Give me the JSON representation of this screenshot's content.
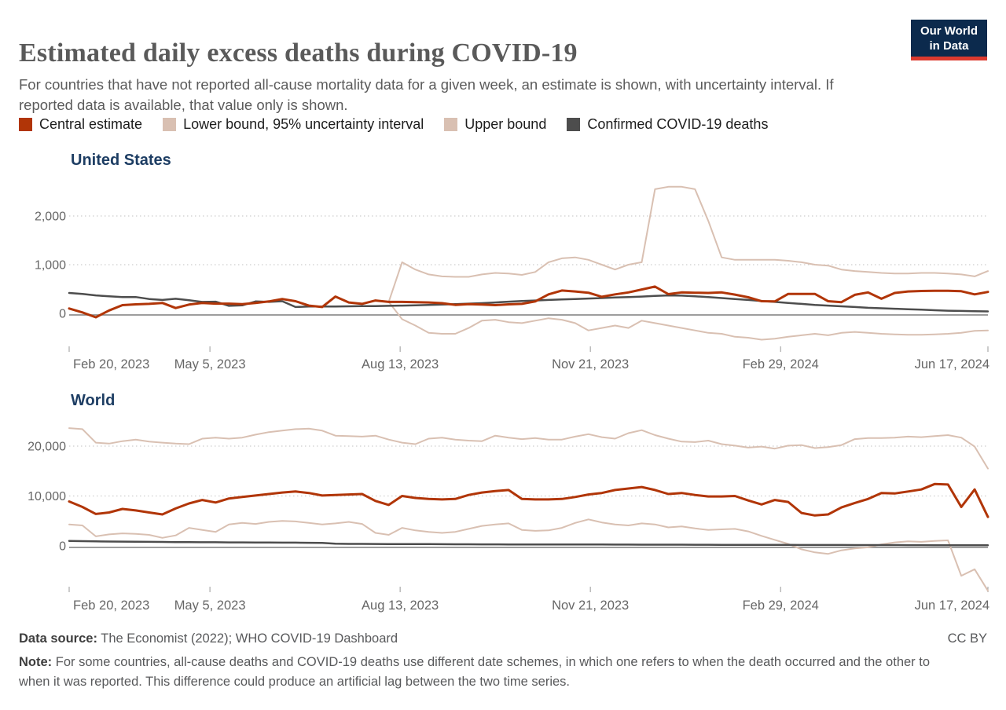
{
  "header": {
    "title": "Estimated daily excess deaths during COVID-19",
    "subtitle": "For countries that have not reported all-cause mortality data for a given week, an estimate is shown, with uncertainty interval. If reported data is available, that value only is shown."
  },
  "logo": {
    "line1": "Our World",
    "line2": "in Data",
    "bg_color": "#0c2a4d",
    "bar_color": "#dc3a2f"
  },
  "legend": {
    "items": [
      {
        "label": "Central estimate",
        "color": "#b13507"
      },
      {
        "label": "Lower bound, 95% uncertainty interval",
        "color": "#d9c0b2"
      },
      {
        "label": "Upper bound",
        "color": "#d9c0b2"
      },
      {
        "label": "Confirmed COVID-19 deaths",
        "color": "#4d4d4d"
      }
    ]
  },
  "footer": {
    "data_source_label": "Data source:",
    "data_source_text": "The Economist (2022); WHO COVID-19 Dashboard",
    "license": "CC BY",
    "note_label": "Note:",
    "note_text": "For some countries, all-cause deaths and COVID-19 deaths use different date schemes, in which one refers to when the death occurred and the other to when it was reported. This difference could produce an artificial lag between the two time series."
  },
  "chart_data": [
    {
      "type": "line",
      "title": "United States",
      "week_step_days": 7,
      "x_axis": {
        "total_days": 483,
        "tick_days": [
          0,
          74,
          174,
          274,
          374,
          483
        ],
        "tick_labels": [
          "Feb 20, 2023",
          "May 5, 2023",
          "Aug 13, 2023",
          "Nov 21, 2023",
          "Feb 29, 2024",
          "Jun 17, 2024"
        ]
      },
      "y_axis": {
        "ticks": [
          0,
          1000,
          2000
        ],
        "tick_labels": [
          "0",
          "1,000",
          "2,000"
        ],
        "ylim": [
          -650,
          2800
        ],
        "grid": true
      },
      "series": [
        {
          "name": "Upper bound",
          "color": "#d9c0b2",
          "width": 2,
          "values": [
            null,
            null,
            null,
            null,
            null,
            null,
            null,
            null,
            null,
            null,
            null,
            null,
            null,
            null,
            null,
            null,
            null,
            null,
            null,
            null,
            null,
            null,
            null,
            null,
            235,
            1050,
            900,
            800,
            760,
            750,
            750,
            800,
            830,
            820,
            790,
            850,
            1050,
            1130,
            1150,
            1100,
            1000,
            900,
            1000,
            1050,
            2550,
            2600,
            2600,
            2550,
            1900,
            1150,
            1100,
            1100,
            1100,
            1100,
            1080,
            1050,
            1000,
            980,
            900,
            870,
            850,
            830,
            820,
            820,
            830,
            830,
            820,
            800,
            760,
            870
          ]
        },
        {
          "name": "Lower bound, 95% uncertainty interval",
          "color": "#d9c0b2",
          "width": 2,
          "values": [
            null,
            null,
            null,
            null,
            null,
            null,
            null,
            null,
            null,
            null,
            null,
            null,
            null,
            null,
            null,
            null,
            null,
            null,
            null,
            null,
            null,
            null,
            null,
            null,
            235,
            -120,
            -250,
            -400,
            -420,
            -420,
            -300,
            -150,
            -130,
            -180,
            -200,
            -150,
            -100,
            -130,
            -200,
            -350,
            -300,
            -250,
            -300,
            -150,
            -200,
            -250,
            -300,
            -350,
            -400,
            -420,
            -480,
            -500,
            -540,
            -520,
            -480,
            -450,
            -420,
            -450,
            -400,
            -380,
            -400,
            -420,
            -430,
            -440,
            -440,
            -430,
            -420,
            -400,
            -360,
            -350
          ]
        },
        {
          "name": "Confirmed COVID-19 deaths",
          "color": "#4d4d4d",
          "width": 2.5,
          "values": [
            420,
            400,
            370,
            350,
            335,
            335,
            295,
            275,
            300,
            270,
            235,
            240,
            155,
            165,
            245,
            235,
            250,
            130,
            140,
            140,
            140,
            145,
            150,
            150,
            155,
            160,
            165,
            175,
            180,
            190,
            200,
            210,
            225,
            240,
            255,
            265,
            275,
            285,
            295,
            305,
            315,
            325,
            335,
            345,
            360,
            370,
            365,
            350,
            335,
            315,
            295,
            275,
            255,
            235,
            215,
            195,
            175,
            160,
            145,
            130,
            115,
            105,
            95,
            85,
            75,
            65,
            55,
            50,
            45,
            40
          ]
        },
        {
          "name": "Central estimate",
          "color": "#b13507",
          "width": 3,
          "values": [
            100,
            20,
            -80,
            60,
            170,
            185,
            195,
            215,
            110,
            180,
            215,
            200,
            200,
            190,
            215,
            245,
            295,
            250,
            160,
            130,
            345,
            225,
            195,
            265,
            235,
            235,
            230,
            225,
            210,
            175,
            190,
            180,
            170,
            185,
            195,
            245,
            390,
            470,
            450,
            425,
            340,
            390,
            430,
            490,
            550,
            395,
            430,
            425,
            420,
            430,
            385,
            330,
            250,
            245,
            400,
            400,
            400,
            250,
            230,
            380,
            430,
            300,
            420,
            450,
            460,
            465,
            465,
            455,
            390,
            440
          ]
        }
      ]
    },
    {
      "type": "line",
      "title": "World",
      "week_step_days": 7,
      "x_axis": {
        "total_days": 483,
        "tick_days": [
          0,
          74,
          174,
          274,
          374,
          483
        ],
        "tick_labels": [
          "Feb 20, 2023",
          "May 5, 2023",
          "Aug 13, 2023",
          "Nov 21, 2023",
          "Feb 29, 2024",
          "Jun 17, 2024"
        ]
      },
      "y_axis": {
        "ticks": [
          0,
          10000,
          20000
        ],
        "tick_labels": [
          "0",
          "10,000",
          "20,000"
        ],
        "ylim": [
          -9200,
          25500
        ],
        "grid": true
      },
      "series": [
        {
          "name": "Upper bound",
          "color": "#d9c0b2",
          "width": 2,
          "values": [
            23600,
            23400,
            20700,
            20500,
            21000,
            21300,
            20900,
            20700,
            20500,
            20400,
            21500,
            21700,
            21500,
            21700,
            22300,
            22800,
            23100,
            23400,
            23500,
            23100,
            22100,
            22000,
            21900,
            22100,
            21300,
            20700,
            20400,
            21500,
            21700,
            21300,
            21100,
            21000,
            22100,
            21700,
            21400,
            21600,
            21300,
            21300,
            21900,
            22400,
            21800,
            21500,
            22600,
            23200,
            22200,
            21500,
            20900,
            20800,
            21100,
            20400,
            20100,
            19700,
            19900,
            19500,
            20100,
            20200,
            19600,
            19800,
            20200,
            21400,
            21600,
            21600,
            21700,
            21900,
            21800,
            22000,
            22200,
            21700,
            19900,
            15500
          ]
        },
        {
          "name": "Lower bound, 95% uncertainty interval",
          "color": "#d9c0b2",
          "width": 2,
          "values": [
            4300,
            4100,
            1900,
            2300,
            2500,
            2400,
            2200,
            1600,
            2100,
            3600,
            3200,
            2800,
            4300,
            4600,
            4400,
            4800,
            5000,
            4900,
            4600,
            4300,
            4500,
            4800,
            4400,
            2600,
            2200,
            3600,
            3100,
            2800,
            2600,
            2800,
            3400,
            4000,
            4300,
            4500,
            3200,
            3000,
            3100,
            3600,
            4600,
            5300,
            4700,
            4300,
            4100,
            4500,
            4300,
            3700,
            3900,
            3500,
            3200,
            3300,
            3400,
            2900,
            2000,
            1200,
            400,
            -700,
            -1300,
            -1600,
            -900,
            -500,
            -300,
            300,
            700,
            900,
            800,
            1000,
            1100,
            -6000,
            -4700,
            -9000
          ]
        },
        {
          "name": "Confirmed COVID-19 deaths",
          "color": "#4d4d4d",
          "width": 2.5,
          "values": [
            1000,
            950,
            900,
            870,
            850,
            830,
            800,
            780,
            760,
            740,
            730,
            720,
            700,
            690,
            680,
            670,
            650,
            640,
            620,
            600,
            420,
            400,
            390,
            380,
            370,
            360,
            350,
            340,
            330,
            320,
            310,
            300,
            300,
            290,
            290,
            280,
            280,
            270,
            270,
            260,
            260,
            250,
            250,
            240,
            240,
            230,
            230,
            220,
            220,
            210,
            210,
            200,
            200,
            190,
            190,
            180,
            180,
            170,
            170,
            160,
            160,
            150,
            150,
            140,
            140,
            130,
            130,
            120,
            120,
            110
          ]
        },
        {
          "name": "Central estimate",
          "color": "#b13507",
          "width": 3,
          "values": [
            8900,
            7800,
            6400,
            6700,
            7400,
            7100,
            6700,
            6300,
            7500,
            8500,
            9200,
            8700,
            9500,
            9800,
            10100,
            10400,
            10700,
            10900,
            10600,
            10100,
            10200,
            10300,
            10400,
            9000,
            8200,
            10000,
            9600,
            9400,
            9300,
            9400,
            10200,
            10700,
            11000,
            11200,
            9400,
            9300,
            9300,
            9400,
            9800,
            10300,
            10600,
            11200,
            11500,
            11800,
            11200,
            10400,
            10600,
            10200,
            9900,
            9900,
            10000,
            9100,
            8300,
            9200,
            8800,
            6600,
            6100,
            6300,
            7700,
            8600,
            9400,
            10600,
            10500,
            10900,
            11300,
            12400,
            12300,
            7800,
            11300,
            5800
          ]
        }
      ]
    }
  ]
}
